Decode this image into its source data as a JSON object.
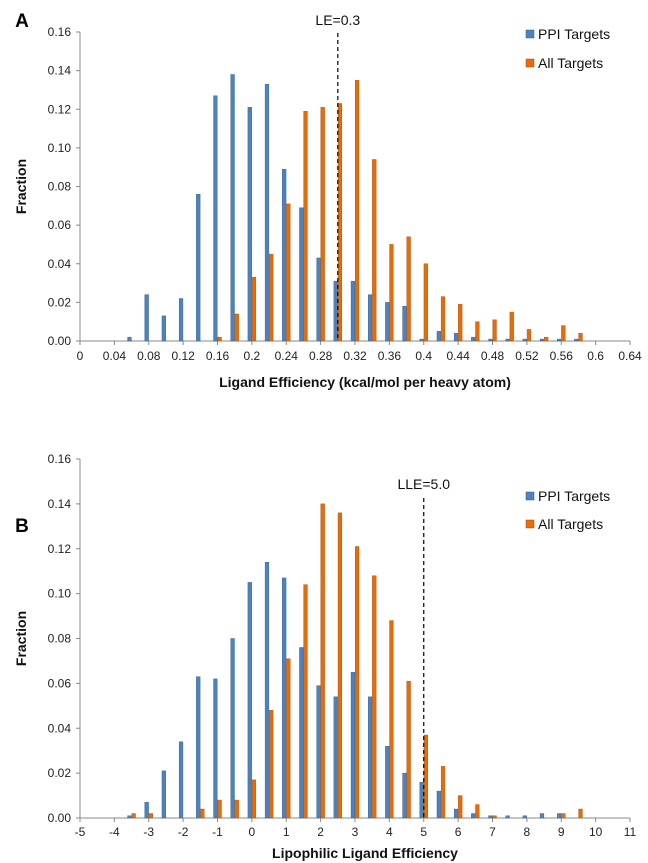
{
  "colors": {
    "ppi": "#4f81bd",
    "ppi_edge": "#2f5f91",
    "all": "#e46c0a",
    "all_edge": "#a84f07",
    "axis": "#888888",
    "refline": "#000000"
  },
  "chart_data": [
    {
      "type": "bar",
      "panel_label": "A",
      "xlabel": "Ligand Efficiency (kcal/mol per heavy atom)",
      "ylabel": "Fraction",
      "ylim": [
        0,
        0.16
      ],
      "yticks": [
        "0.00",
        "0.02",
        "0.04",
        "0.06",
        "0.08",
        "0.10",
        "0.12",
        "0.14",
        "0.16"
      ],
      "xlim": [
        0,
        0.64
      ],
      "xticks": [
        "0",
        "0.04",
        "0.08",
        "0.12",
        "0.16",
        "0.2",
        "0.24",
        "0.28",
        "0.32",
        "0.36",
        "0.4",
        "0.44",
        "0.48",
        "0.52",
        "0.56",
        "0.6",
        "0.64"
      ],
      "bin_width": 0.02,
      "reference_line": {
        "x": 0.3,
        "label": "LE=0.3"
      },
      "legend_position": "top-right",
      "series": [
        {
          "name": "PPI Targets",
          "x": [
            0.06,
            0.08,
            0.1,
            0.12,
            0.14,
            0.16,
            0.18,
            0.2,
            0.22,
            0.24,
            0.26,
            0.28,
            0.3,
            0.32,
            0.34,
            0.36,
            0.38,
            0.4,
            0.42,
            0.44,
            0.46,
            0.48,
            0.5,
            0.52,
            0.54,
            0.56,
            0.58
          ],
          "values": [
            0.002,
            0.024,
            0.013,
            0.022,
            0.076,
            0.127,
            0.138,
            0.121,
            0.133,
            0.089,
            0.069,
            0.043,
            0.031,
            0.031,
            0.024,
            0.02,
            0.018,
            0.001,
            0.005,
            0.004,
            0.002,
            0.001,
            0.001,
            0.001,
            0.001,
            0.001,
            0.001
          ]
        },
        {
          "name": "All Targets",
          "x": [
            0.16,
            0.18,
            0.2,
            0.22,
            0.24,
            0.26,
            0.28,
            0.3,
            0.32,
            0.34,
            0.36,
            0.38,
            0.4,
            0.42,
            0.44,
            0.46,
            0.48,
            0.5,
            0.52,
            0.54,
            0.56,
            0.58
          ],
          "values": [
            0.002,
            0.014,
            0.033,
            0.045,
            0.071,
            0.119,
            0.121,
            0.123,
            0.135,
            0.094,
            0.05,
            0.054,
            0.04,
            0.023,
            0.019,
            0.01,
            0.011,
            0.015,
            0.006,
            0.002,
            0.008,
            0.004
          ]
        }
      ]
    },
    {
      "type": "bar",
      "panel_label": "B",
      "xlabel": "Lipophilic Ligand Efficiency",
      "ylabel": "Fraction",
      "ylim": [
        0,
        0.16
      ],
      "yticks": [
        "0.00",
        "0.02",
        "0.04",
        "0.06",
        "0.08",
        "0.10",
        "0.12",
        "0.14",
        "0.16"
      ],
      "xlim": [
        -5,
        11
      ],
      "xticks": [
        "-5",
        "-4",
        "-3",
        "-2",
        "-1",
        "0",
        "1",
        "2",
        "3",
        "4",
        "5",
        "6",
        "7",
        "8",
        "9",
        "10",
        "11"
      ],
      "bin_width": 0.5,
      "reference_line": {
        "x": 5.0,
        "label": "LLE=5.0"
      },
      "legend_position": "top-right",
      "series": [
        {
          "name": "PPI Targets",
          "x": [
            -3.5,
            -3.0,
            -2.5,
            -2.0,
            -1.5,
            -1.0,
            -0.5,
            0.0,
            0.5,
            1.0,
            1.5,
            2.0,
            2.5,
            3.0,
            3.5,
            4.0,
            4.5,
            5.0,
            5.5,
            6.0,
            6.5,
            7.0,
            7.5,
            8.0,
            8.5,
            9.0
          ],
          "values": [
            0.001,
            0.007,
            0.021,
            0.034,
            0.063,
            0.062,
            0.08,
            0.105,
            0.114,
            0.107,
            0.076,
            0.059,
            0.054,
            0.065,
            0.054,
            0.032,
            0.02,
            0.016,
            0.012,
            0.004,
            0.002,
            0.001,
            0.001,
            0.001,
            0.002,
            0.002
          ]
        },
        {
          "name": "All Targets",
          "x": [
            -3.5,
            -3.0,
            -1.5,
            -1.0,
            -0.5,
            0.0,
            0.5,
            1.0,
            1.5,
            2.0,
            2.5,
            3.0,
            3.5,
            4.0,
            4.5,
            5.0,
            5.5,
            6.0,
            6.5,
            7.0,
            9.0,
            9.5
          ],
          "values": [
            0.002,
            0.002,
            0.004,
            0.008,
            0.008,
            0.017,
            0.048,
            0.071,
            0.104,
            0.14,
            0.136,
            0.121,
            0.108,
            0.088,
            0.061,
            0.037,
            0.023,
            0.01,
            0.006,
            0.001,
            0.002,
            0.004
          ]
        }
      ]
    }
  ]
}
